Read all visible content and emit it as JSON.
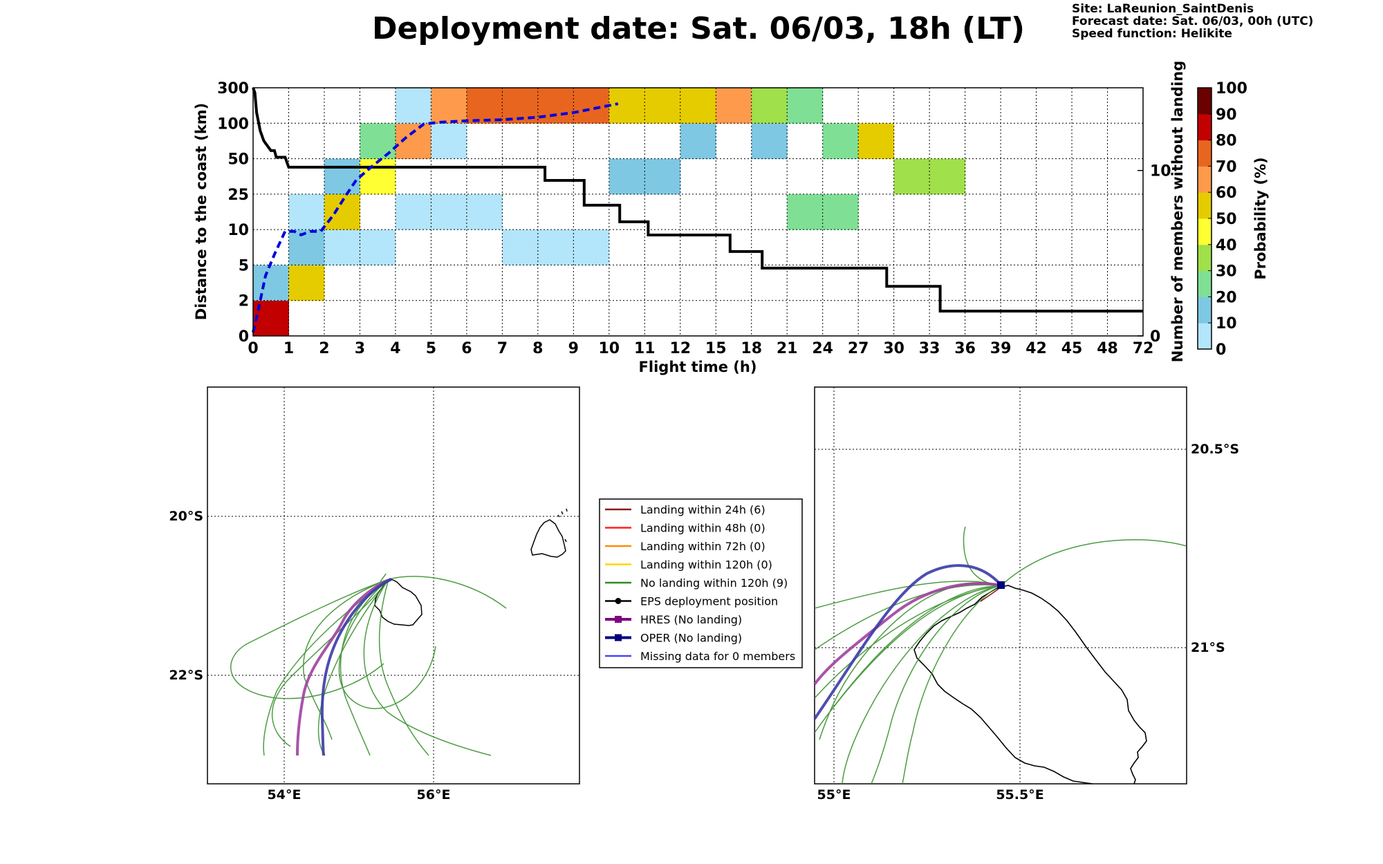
{
  "header": {
    "title": "Deployment date: Sat. 06/03, 18h (LT)",
    "info": [
      "Site: LaReunion_SaintDenis",
      "Forecast date: Sat. 06/03, 00h (UTC)",
      "Speed function: Helikite"
    ]
  },
  "chart_data": [
    {
      "type": "heatmap",
      "xlabel": "Flight time (h)",
      "ylabel": "Distance to the coast (km)",
      "y2label": "Number of members without landing",
      "colorbar_label": "Probability (%)",
      "x_ticks": [
        "0",
        "1",
        "2",
        "3",
        "4",
        "5",
        "6",
        "7",
        "8",
        "9",
        "10",
        "11",
        "12",
        "15",
        "18",
        "21",
        "24",
        "27",
        "30",
        "33",
        "36",
        "39",
        "42",
        "45",
        "48",
        "72"
      ],
      "y_ticks": [
        "0",
        "2",
        "5",
        "10",
        "25",
        "50",
        "100",
        "300"
      ],
      "y2_ticks": [
        "0",
        "10"
      ],
      "y2_range": [
        0,
        15
      ],
      "colorbar_ticks": [
        "0",
        "10",
        "20",
        "30",
        "40",
        "50",
        "60",
        "70",
        "80",
        "90",
        "100"
      ],
      "colorbar_colors": [
        "#b3e5fb",
        "#7ec8e3",
        "#7fe095",
        "#a0e04a",
        "#ffff33",
        "#e5cc00",
        "#fd9a4c",
        "#e8651f",
        "#c20000",
        "#6b0000"
      ],
      "cells": [
        {
          "x": 0,
          "y": 0,
          "p": 80
        },
        {
          "x": 0,
          "y": 1,
          "p": 10
        },
        {
          "x": 1,
          "y": 1,
          "p": 50
        },
        {
          "x": 1,
          "y": 2,
          "p": 10
        },
        {
          "x": 1,
          "y": 3,
          "p": 0
        },
        {
          "x": 2,
          "y": 2,
          "p": 0
        },
        {
          "x": 2,
          "y": 3,
          "p": 50
        },
        {
          "x": 2,
          "y": 4,
          "p": 10
        },
        {
          "x": 3,
          "y": 2,
          "p": 0
        },
        {
          "x": 3,
          "y": 4,
          "p": 40
        },
        {
          "x": 3,
          "y": 5,
          "p": 20
        },
        {
          "x": 4,
          "y": 3,
          "p": 0
        },
        {
          "x": 4,
          "y": 5,
          "p": 60
        },
        {
          "x": 4,
          "y": 6,
          "p": 0
        },
        {
          "x": 5,
          "y": 3,
          "p": 0
        },
        {
          "x": 5,
          "y": 5,
          "p": 0
        },
        {
          "x": 5,
          "y": 6,
          "p": 60
        },
        {
          "x": 6,
          "y": 3,
          "p": 0
        },
        {
          "x": 6,
          "y": 6,
          "p": 70
        },
        {
          "x": 7,
          "y": 2,
          "p": 0
        },
        {
          "x": 7,
          "y": 6,
          "p": 70
        },
        {
          "x": 8,
          "y": 2,
          "p": 0
        },
        {
          "x": 8,
          "y": 6,
          "p": 70
        },
        {
          "x": 9,
          "y": 2,
          "p": 0
        },
        {
          "x": 9,
          "y": 6,
          "p": 70
        },
        {
          "x": 10,
          "y": 4,
          "p": 10
        },
        {
          "x": 10,
          "y": 6,
          "p": 50
        },
        {
          "x": 11,
          "y": 4,
          "p": 10
        },
        {
          "x": 11,
          "y": 6,
          "p": 50
        },
        {
          "x": 12,
          "y": 5,
          "p": 10
        },
        {
          "x": 12,
          "y": 6,
          "p": 50
        },
        {
          "x": 13,
          "y": 6,
          "p": 60
        },
        {
          "x": 14,
          "y": 5,
          "p": 10
        },
        {
          "x": 14,
          "y": 6,
          "p": 30
        },
        {
          "x": 15,
          "y": 3,
          "p": 20
        },
        {
          "x": 15,
          "y": 6,
          "p": 20
        },
        {
          "x": 16,
          "y": 3,
          "p": 20
        },
        {
          "x": 16,
          "y": 5,
          "p": 20
        },
        {
          "x": 17,
          "y": 5,
          "p": 50
        },
        {
          "x": 18,
          "y": 4,
          "p": 30
        },
        {
          "x": 19,
          "y": 4,
          "p": 30
        }
      ],
      "members_without_landing": [
        [
          0,
          15
        ],
        [
          0.05,
          14.7
        ],
        [
          0.1,
          13.5
        ],
        [
          0.2,
          12.4
        ],
        [
          0.3,
          11.8
        ],
        [
          0.4,
          11.5
        ],
        [
          0.5,
          11.2
        ],
        [
          0.6,
          11.2
        ],
        [
          0.65,
          10.8
        ],
        [
          0.9,
          10.8
        ],
        [
          1.0,
          10.2
        ],
        [
          8.2,
          10.2
        ],
        [
          8.2,
          9.4
        ],
        [
          9.3,
          9.4
        ],
        [
          9.3,
          7.9
        ],
        [
          10.3,
          7.9
        ],
        [
          10.3,
          6.9
        ],
        [
          11.1,
          6.9
        ],
        [
          11.1,
          6.1
        ],
        [
          13.4,
          6.1
        ],
        [
          13.4,
          5.1
        ],
        [
          14.3,
          5.1
        ],
        [
          14.3,
          4.1
        ],
        [
          17.8,
          4.1
        ],
        [
          17.8,
          3.0
        ],
        [
          19.3,
          3.0
        ],
        [
          19.3,
          1.5
        ],
        [
          25,
          1.5
        ]
      ],
      "median_distance": [
        [
          0,
          0.1
        ],
        [
          0.15,
          0.75
        ],
        [
          0.35,
          1.7
        ],
        [
          0.6,
          2.3
        ],
        [
          0.9,
          2.95
        ],
        [
          1.15,
          2.95
        ],
        [
          1.35,
          2.85
        ],
        [
          1.6,
          2.95
        ],
        [
          1.9,
          2.95
        ],
        [
          2.25,
          3.4
        ],
        [
          2.6,
          3.95
        ],
        [
          2.9,
          4.4
        ],
        [
          3.3,
          4.75
        ],
        [
          3.8,
          5.15
        ],
        [
          4.3,
          5.6
        ],
        [
          4.8,
          5.98
        ],
        [
          5.3,
          6.03
        ],
        [
          6.0,
          6.07
        ],
        [
          7.0,
          6.1
        ],
        [
          8.0,
          6.17
        ],
        [
          9.0,
          6.3
        ],
        [
          10.25,
          6.55
        ]
      ]
    },
    {
      "type": "map",
      "x_ticks": [
        "54°E",
        "56°E"
      ],
      "y_ticks": [
        "20°S",
        "22°S"
      ],
      "legend": [
        {
          "label": "Landing within 24h (6)",
          "color": "#8b1a1a",
          "marker": ""
        },
        {
          "label": "Landing within 48h (0)",
          "color": "#ff2020",
          "marker": ""
        },
        {
          "label": "Landing within 72h (0)",
          "color": "#ff8c00",
          "marker": ""
        },
        {
          "label": "Landing within 120h (0)",
          "color": "#ffd700",
          "marker": ""
        },
        {
          "label": "No landing within 120h (9)",
          "color": "#2e8b22",
          "marker": ""
        },
        {
          "label": "EPS deployment position",
          "color": "#000000",
          "marker": "circle"
        },
        {
          "label": "HRES (No landing)",
          "color": "#800080",
          "marker": "square"
        },
        {
          "label": "OPER (No landing)",
          "color": "#000080",
          "marker": "square"
        },
        {
          "label": "Missing data for 0 members",
          "color": "#4444ff",
          "marker": ""
        }
      ]
    },
    {
      "type": "map",
      "x_ticks": [
        "55°E",
        "55.5°E"
      ],
      "y_ticks": [
        "20.5°S",
        "21°S"
      ]
    }
  ]
}
